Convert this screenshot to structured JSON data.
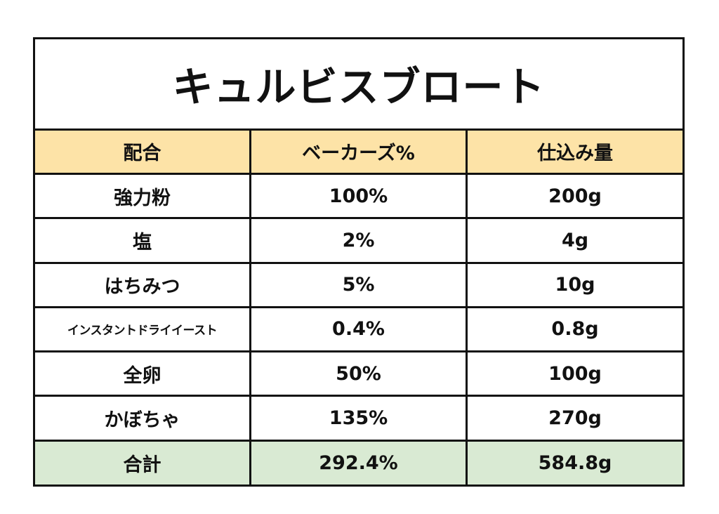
{
  "title": "キュルビスブロート",
  "colors": {
    "header_bg": "#fde3a7",
    "total_bg": "#d9ead3",
    "border": "#111111"
  },
  "table": {
    "headers": [
      "配合",
      "ベーカーズ%",
      "仕込み量"
    ],
    "rows": [
      {
        "name": "強力粉",
        "percent": "100%",
        "amount": "200g"
      },
      {
        "name": "塩",
        "percent": "2%",
        "amount": "4g"
      },
      {
        "name": "はちみつ",
        "percent": "5%",
        "amount": "10g"
      },
      {
        "name": "インスタントドライイースト",
        "percent": "0.4%",
        "amount": "0.8g"
      },
      {
        "name": "全卵",
        "percent": "50%",
        "amount": "100g"
      },
      {
        "name": "かぼちゃ",
        "percent": "135%",
        "amount": "270g"
      }
    ],
    "total": {
      "name": "合計",
      "percent": "292.4%",
      "amount": "584.8g"
    }
  }
}
